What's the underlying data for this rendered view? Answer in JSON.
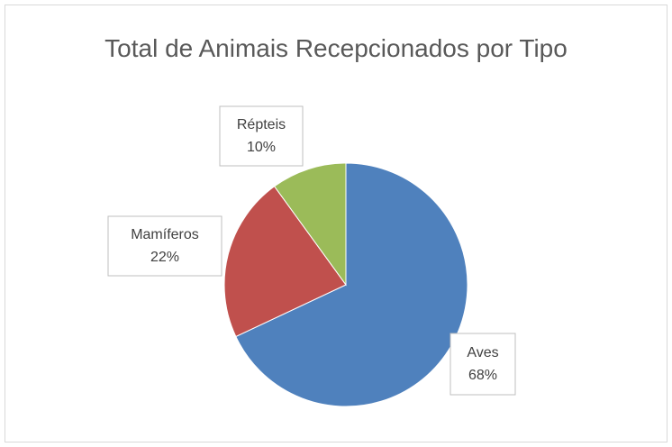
{
  "chart_data": {
    "type": "pie",
    "title": "Total de Animais Recepcionados por Tipo",
    "categories": [
      "Aves",
      "Mamíferos",
      "Répteis"
    ],
    "values": [
      68,
      22,
      10
    ],
    "value_labels": [
      "68%",
      "22%",
      "10%"
    ],
    "colors": [
      "#4f81bd",
      "#c0504d",
      "#9bbb59"
    ]
  }
}
